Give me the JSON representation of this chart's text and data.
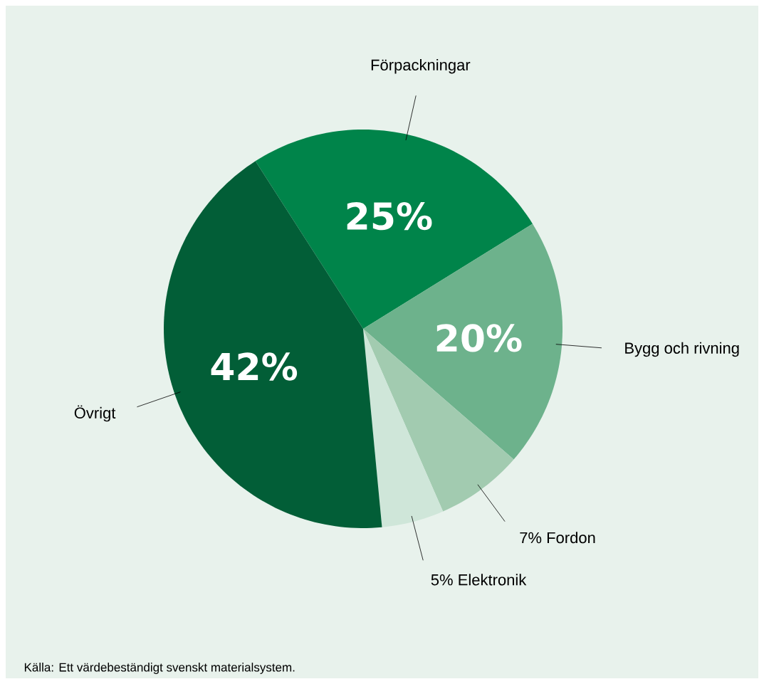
{
  "chart_data": {
    "type": "pie",
    "categories": [
      "Förpackningar",
      "Bygg och rivning",
      "Fordon",
      "Elektronik",
      "Övrigt"
    ],
    "values": [
      25,
      20,
      7,
      5,
      42
    ],
    "value_labels": [
      "25%",
      "20%",
      "7%",
      "5%",
      "42%"
    ],
    "colors": [
      "#00844a",
      "#6db28c",
      "#a2cbb0",
      "#cfe6d9",
      "#025e37"
    ],
    "annotations": [
      "Källa: Ett värdebeständigt svenskt materialsystem."
    ]
  }
}
